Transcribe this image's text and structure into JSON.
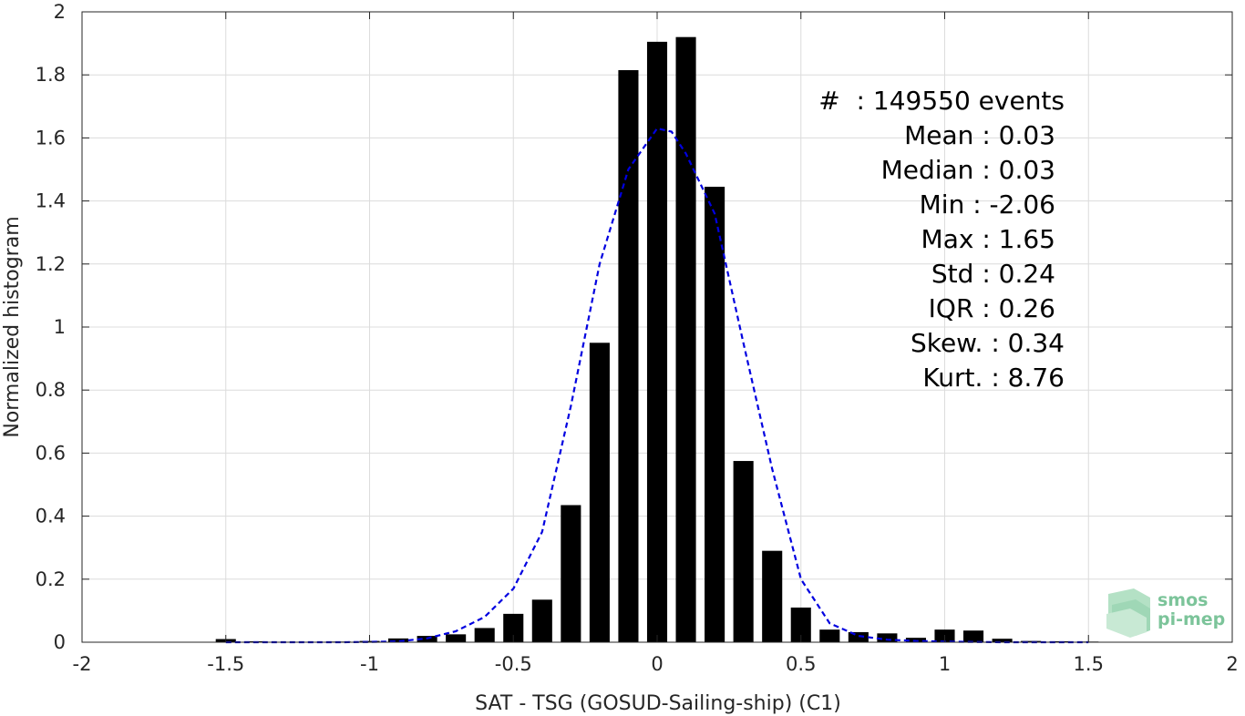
{
  "chart_data": {
    "type": "bar",
    "title": "",
    "xlabel": "SAT - TSG (GOSUD-Sailing-ship) (C1)",
    "ylabel": "Normalized histogram",
    "xlim": [
      -2,
      2
    ],
    "ylim": [
      0,
      2
    ],
    "grid": true,
    "x_ticks": [
      "-2",
      "-1.5",
      "-1",
      "-0.5",
      "0",
      "0.5",
      "1",
      "1.5",
      "2"
    ],
    "x_tick_values": [
      -2,
      -1.5,
      -1,
      -0.5,
      0,
      0.5,
      1,
      1.5,
      2
    ],
    "y_ticks": [
      "0",
      "0.2",
      "0.4",
      "0.6",
      "0.8",
      "1",
      "1.2",
      "1.4",
      "1.6",
      "1.8",
      "2"
    ],
    "y_tick_values": [
      0,
      0.2,
      0.4,
      0.6,
      0.8,
      1,
      1.2,
      1.4,
      1.6,
      1.8,
      2
    ],
    "bar_width": 0.07,
    "bars": [
      {
        "x": -1.5,
        "y": 0.01
      },
      {
        "x": -1.4,
        "y": 0.003
      },
      {
        "x": -1.3,
        "y": 0.001
      },
      {
        "x": -1.2,
        "y": 0.001
      },
      {
        "x": -1.1,
        "y": 0.002
      },
      {
        "x": -1.0,
        "y": 0.004
      },
      {
        "x": -0.9,
        "y": 0.012
      },
      {
        "x": -0.8,
        "y": 0.02
      },
      {
        "x": -0.7,
        "y": 0.025
      },
      {
        "x": -0.6,
        "y": 0.045
      },
      {
        "x": -0.5,
        "y": 0.09
      },
      {
        "x": -0.4,
        "y": 0.135
      },
      {
        "x": -0.3,
        "y": 0.435
      },
      {
        "x": -0.2,
        "y": 0.95
      },
      {
        "x": -0.1,
        "y": 1.815
      },
      {
        "x": 0.0,
        "y": 1.905
      },
      {
        "x": 0.1,
        "y": 1.92
      },
      {
        "x": 0.2,
        "y": 1.445
      },
      {
        "x": 0.3,
        "y": 0.575
      },
      {
        "x": 0.4,
        "y": 0.29
      },
      {
        "x": 0.5,
        "y": 0.11
      },
      {
        "x": 0.6,
        "y": 0.04
      },
      {
        "x": 0.7,
        "y": 0.032
      },
      {
        "x": 0.8,
        "y": 0.028
      },
      {
        "x": 0.9,
        "y": 0.014
      },
      {
        "x": 1.0,
        "y": 0.04
      },
      {
        "x": 1.1,
        "y": 0.037
      },
      {
        "x": 1.2,
        "y": 0.011
      },
      {
        "x": 1.3,
        "y": 0.004
      },
      {
        "x": 1.4,
        "y": 0.003
      },
      {
        "x": 1.5,
        "y": 0.002
      }
    ],
    "bar_color": "#000000",
    "fit_curve": {
      "style": "dashed",
      "color": "#0000e0",
      "x": [
        -1.5,
        -1.4,
        -1.3,
        -1.2,
        -1.1,
        -1.0,
        -0.9,
        -0.8,
        -0.7,
        -0.6,
        -0.5,
        -0.4,
        -0.3,
        -0.2,
        -0.1,
        0.0,
        0.05,
        0.1,
        0.2,
        0.3,
        0.4,
        0.5,
        0.6,
        0.7,
        0.8,
        0.9,
        1.0,
        1.1,
        1.2,
        1.3,
        1.4,
        1.5
      ],
      "y": [
        0,
        0,
        0,
        0,
        0,
        0.001,
        0.003,
        0.012,
        0.035,
        0.08,
        0.17,
        0.35,
        0.75,
        1.2,
        1.5,
        1.63,
        1.62,
        1.55,
        1.36,
        0.95,
        0.55,
        0.2,
        0.06,
        0.02,
        0.008,
        0.004,
        0.002,
        0.001,
        0,
        0,
        0,
        0
      ]
    },
    "annotations": [
      "#  : 149550 events",
      "Mean : 0.03",
      "Median : 0.03",
      "Min : -2.06",
      "Max : 1.65",
      "Std : 0.24",
      "IQR : 0.26",
      "Skew. : 0.34",
      "Kurt. : 8.76"
    ]
  },
  "logo": {
    "line1": "smos",
    "line2": "pi-mep",
    "color": "#7cc49a"
  }
}
